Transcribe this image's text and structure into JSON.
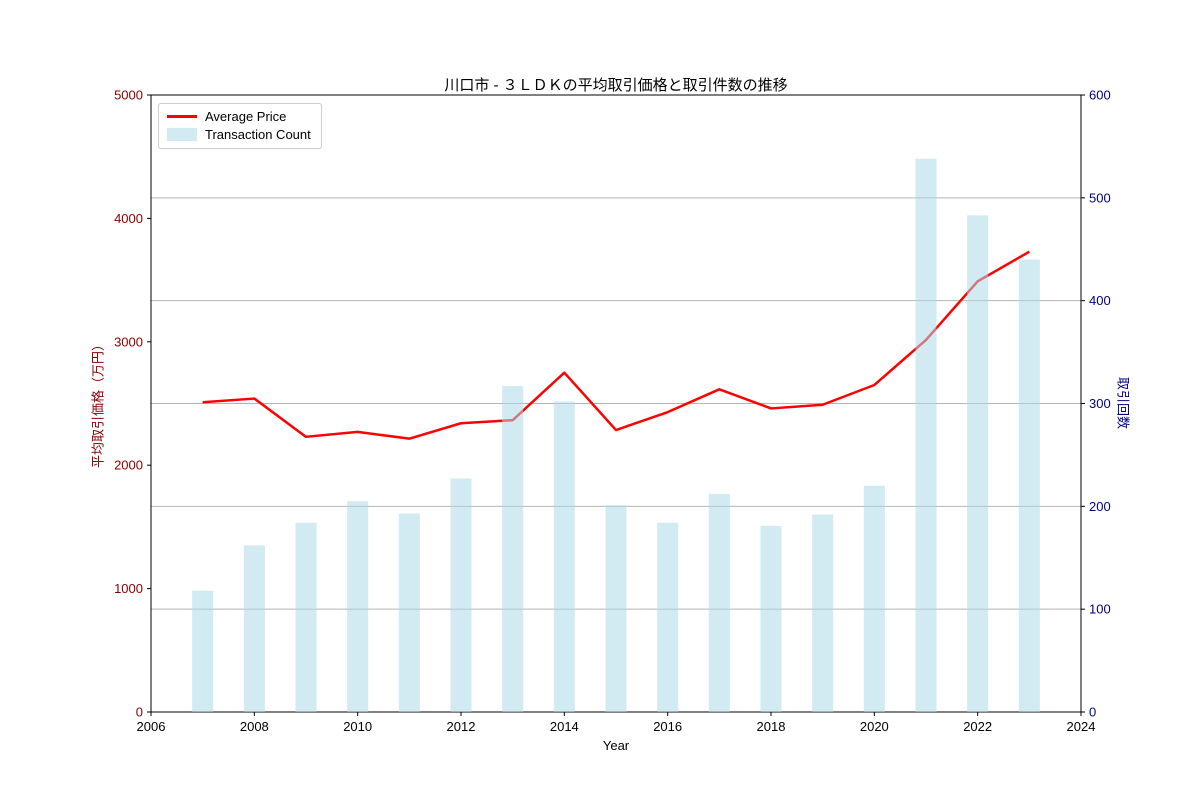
{
  "chart_data": {
    "type": "line+bar",
    "title": "川口市 - ３ＬＤＫの平均取引価格と取引件数の推移",
    "xlabel": "Year",
    "ylabel_left": "平均取引価格（万円）",
    "ylabel_right": "取引回数",
    "xlim": [
      2006,
      2024
    ],
    "x_ticks": [
      2006,
      2008,
      2010,
      2012,
      2014,
      2016,
      2018,
      2020,
      2022,
      2024
    ],
    "ylim_left": [
      0,
      5000
    ],
    "y_ticks_left": [
      0,
      1000,
      2000,
      3000,
      4000,
      5000
    ],
    "ylim_right": [
      0,
      600
    ],
    "y_ticks_right": [
      0,
      100,
      200,
      300,
      400,
      500,
      600
    ],
    "gridlines_at_right_axis_values": [
      100,
      200,
      300,
      400,
      500
    ],
    "legend_position": "upper-left",
    "years": [
      2007,
      2008,
      2009,
      2010,
      2011,
      2012,
      2013,
      2014,
      2015,
      2016,
      2017,
      2018,
      2019,
      2020,
      2021,
      2022,
      2023
    ],
    "series": [
      {
        "name": "Average Price",
        "type": "line",
        "axis": "left",
        "color": "#ff0000",
        "values": [
          2510,
          2540,
          2230,
          2270,
          2215,
          2340,
          2365,
          2750,
          2285,
          2430,
          2615,
          2460,
          2490,
          2650,
          3015,
          3490,
          3730
        ]
      },
      {
        "name": "Transaction Count",
        "type": "bar",
        "axis": "right",
        "color": "#add8e6",
        "opacity": 0.55,
        "values": [
          118,
          162,
          184,
          205,
          193,
          227,
          317,
          302,
          201,
          184,
          212,
          181,
          192,
          220,
          538,
          483,
          440
        ]
      }
    ],
    "colors": {
      "left_axis_text": "#8b0000",
      "right_axis_text": "#000080",
      "x_axis_text": "#000000",
      "grid": "#b4b4b4",
      "spine": "#000000"
    }
  }
}
